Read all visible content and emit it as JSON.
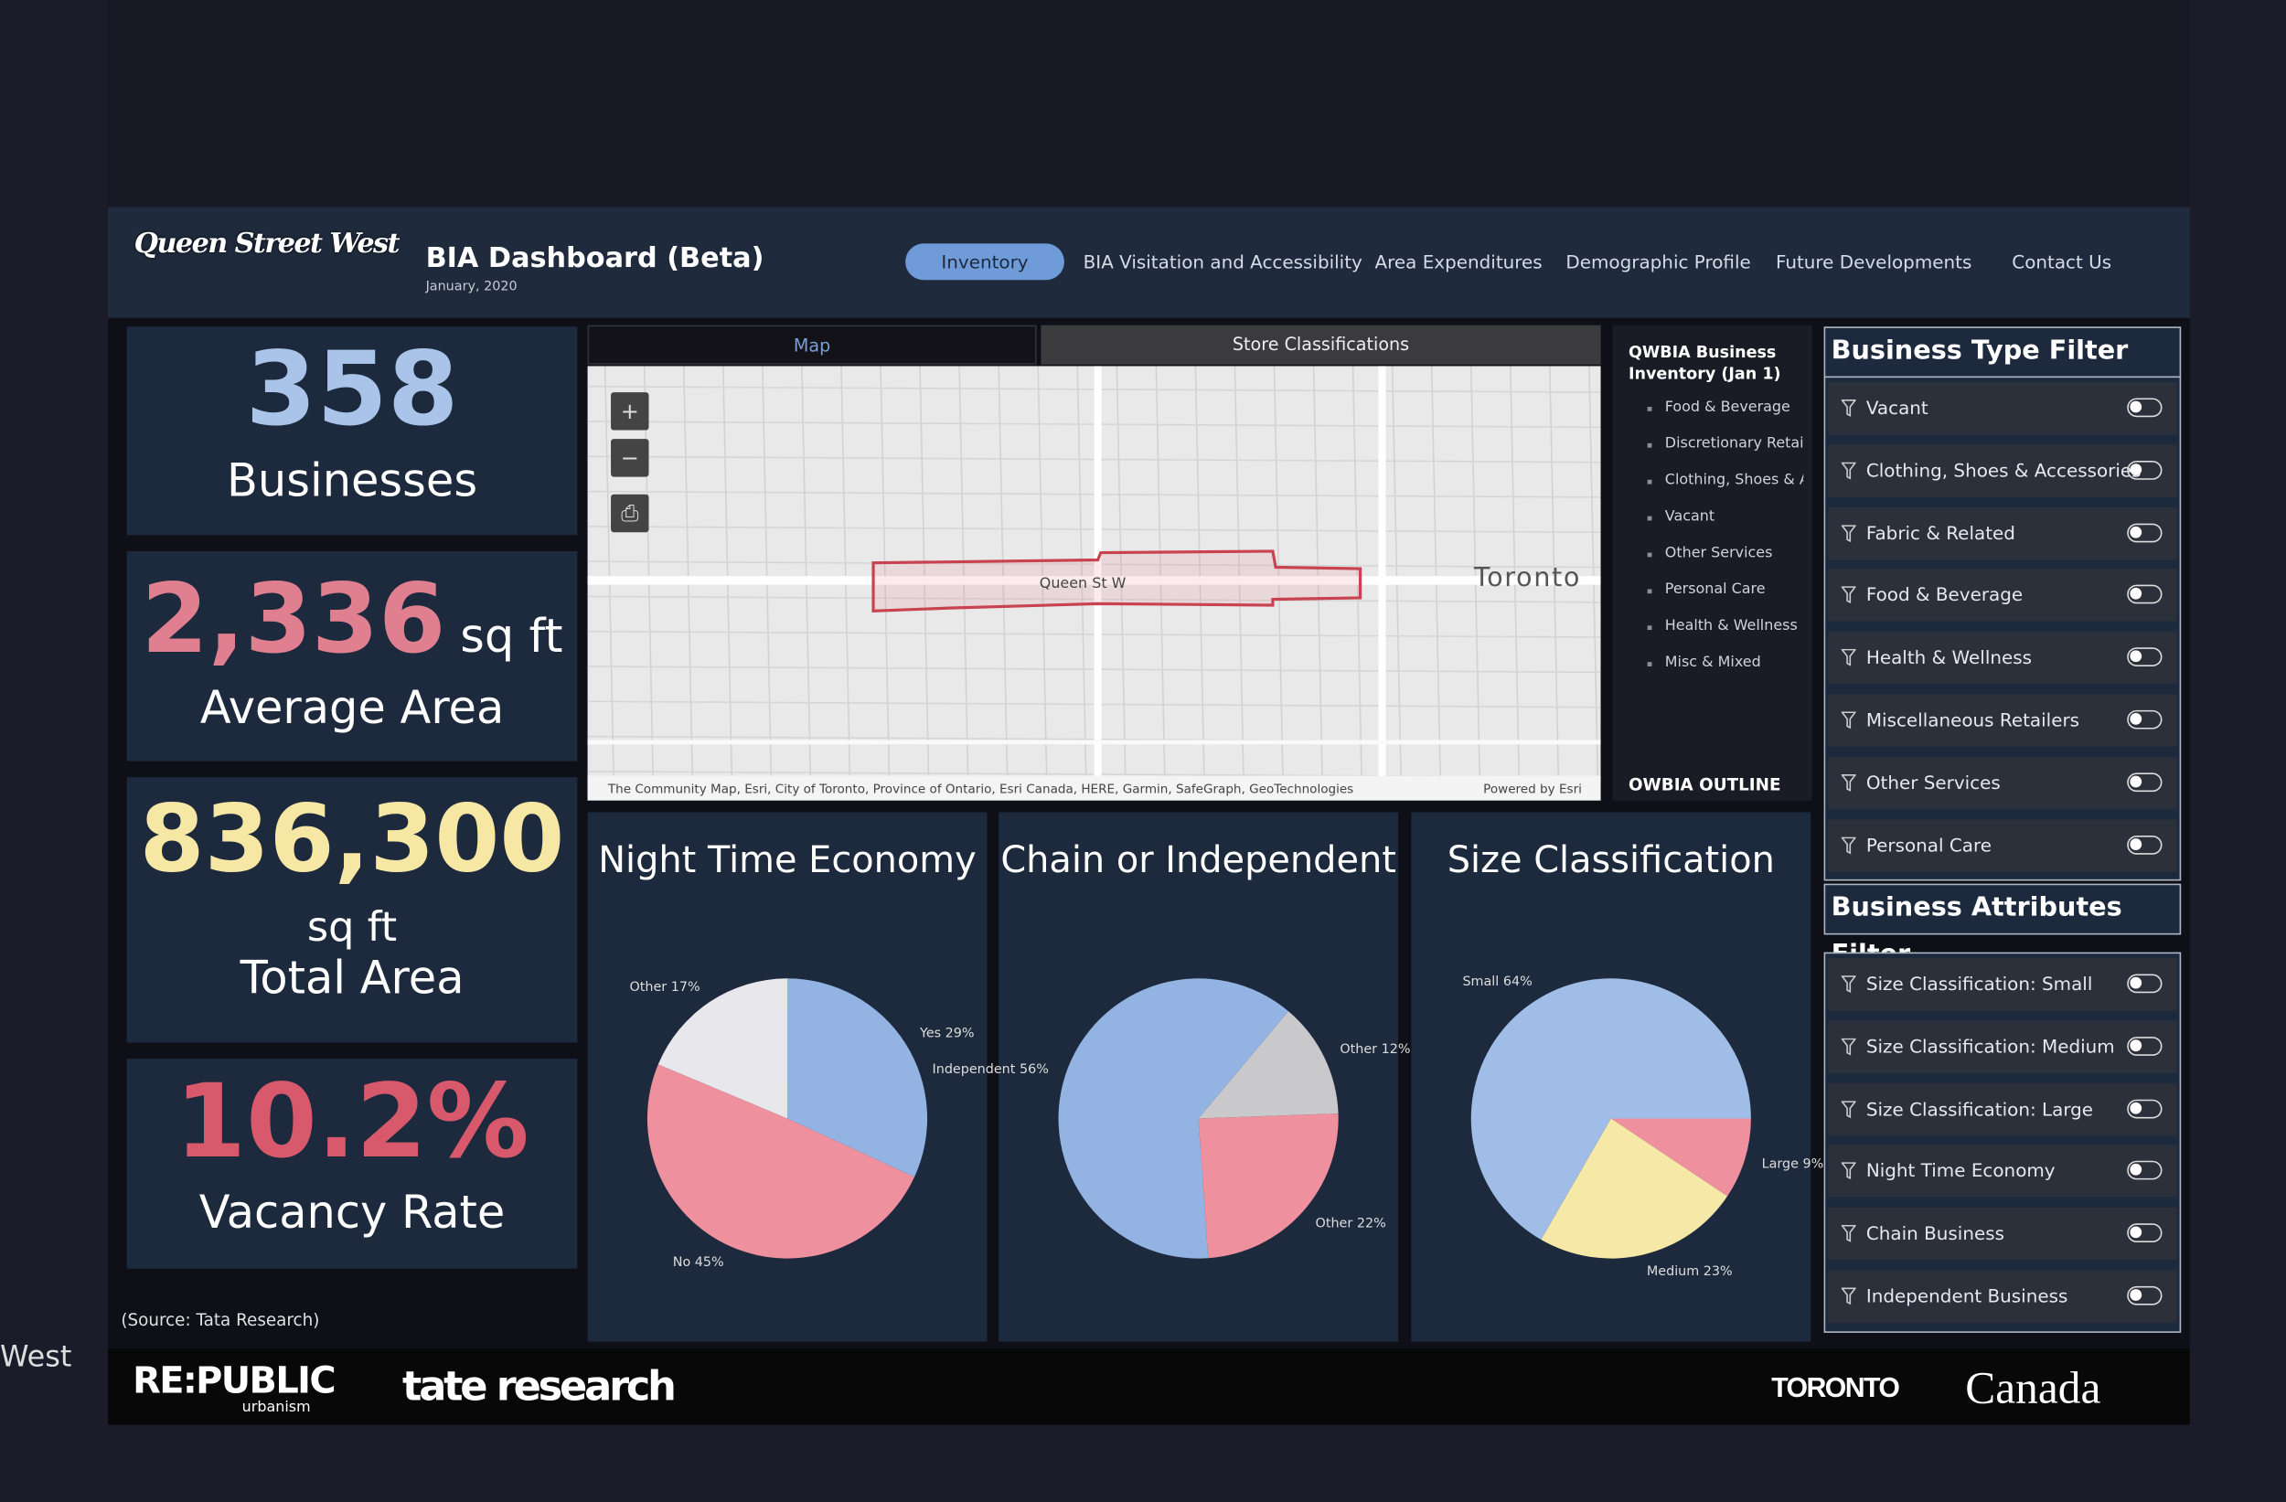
{
  "header": {
    "logo": "Queen Street West",
    "title": "BIA Dashboard (Beta)",
    "date": "January, 2020"
  },
  "nav": [
    "Inventory",
    "BIA Visitation and Accessibility",
    "Area Expenditures",
    "Demographic Profile",
    "Future Developments",
    "Contact Us"
  ],
  "kpis": [
    {
      "value": "358",
      "label": "Businesses"
    },
    {
      "value": "2,336",
      "unit": "sq ft",
      "label": "Average Area"
    },
    {
      "value": "836,300",
      "unit": "sq ft",
      "label": "Total Area"
    },
    {
      "value": "10.2%",
      "label": "Vacancy Rate"
    }
  ],
  "source": "(Source: Tata Research)",
  "map": {
    "tabs": [
      "Map",
      "Store Classifications"
    ],
    "place": "Toronto",
    "street": "Queen St W",
    "attribution": "The Community Map, Esri, City of Toronto, Province of Ontario, Esri Canada, HERE, Garmin, SafeGraph, GeoTechnologies",
    "powered": "Powered by Esri"
  },
  "legend": {
    "title": "QWBIA Business Inventory (Jan 1)",
    "items": [
      "Food & Beverage",
      "Discretionary Retailers",
      "Clothing, Shoes & Accessories",
      "Vacant",
      "Other Services",
      "Personal Care",
      "Health & Wellness",
      "Misc & Mixed"
    ],
    "footer": "OWBIA OUTLINE"
  },
  "charts": [
    {
      "type": "pie",
      "title": "Night Time Economy",
      "values": [
        29,
        45,
        17
      ],
      "value_labels": [
        "Yes 29%",
        "No 45%",
        "Other 17%"
      ],
      "colors": [
        "#93b3e2",
        "#ee909d",
        "#e8e8ec"
      ]
    },
    {
      "type": "pie",
      "title": "Chain or Independent",
      "values": [
        12,
        22,
        56
      ],
      "value_labels": [
        "Other 12%",
        "Other 22%",
        "Independent 56%"
      ],
      "colors": [
        "#c9c9cc",
        "#ee909d",
        "#93b3e2"
      ]
    },
    {
      "type": "pie",
      "title": "Size Classification",
      "values": [
        9,
        23,
        64
      ],
      "value_labels": [
        "Large 9%",
        "Medium 23%",
        "Small 64%"
      ],
      "colors": [
        "#ee909d",
        "#f6e8a6",
        "#9fbde6"
      ]
    }
  ],
  "filters": [
    {
      "title": "Business Type Filter",
      "items": [
        "Vacant",
        "Clothing, Shoes & Accessories",
        "Fabric & Related",
        "Food & Beverage",
        "Health & Wellness",
        "Miscellaneous Retailers",
        "Other Services",
        "Personal Care"
      ]
    },
    {
      "title": "Business Attributes Filter",
      "items": [
        "Size Classification: Small",
        "Size Classification: Medium",
        "Size Classification: Large",
        "Night Time Economy",
        "Chain Business",
        "Independent Business"
      ]
    }
  ],
  "footer": {
    "republic": "RE:PUBLIC",
    "republic_sub": "urbanism",
    "tate": "tate research",
    "toronto": "TORONTO",
    "canada": "Canada"
  },
  "edge_text": "West"
}
